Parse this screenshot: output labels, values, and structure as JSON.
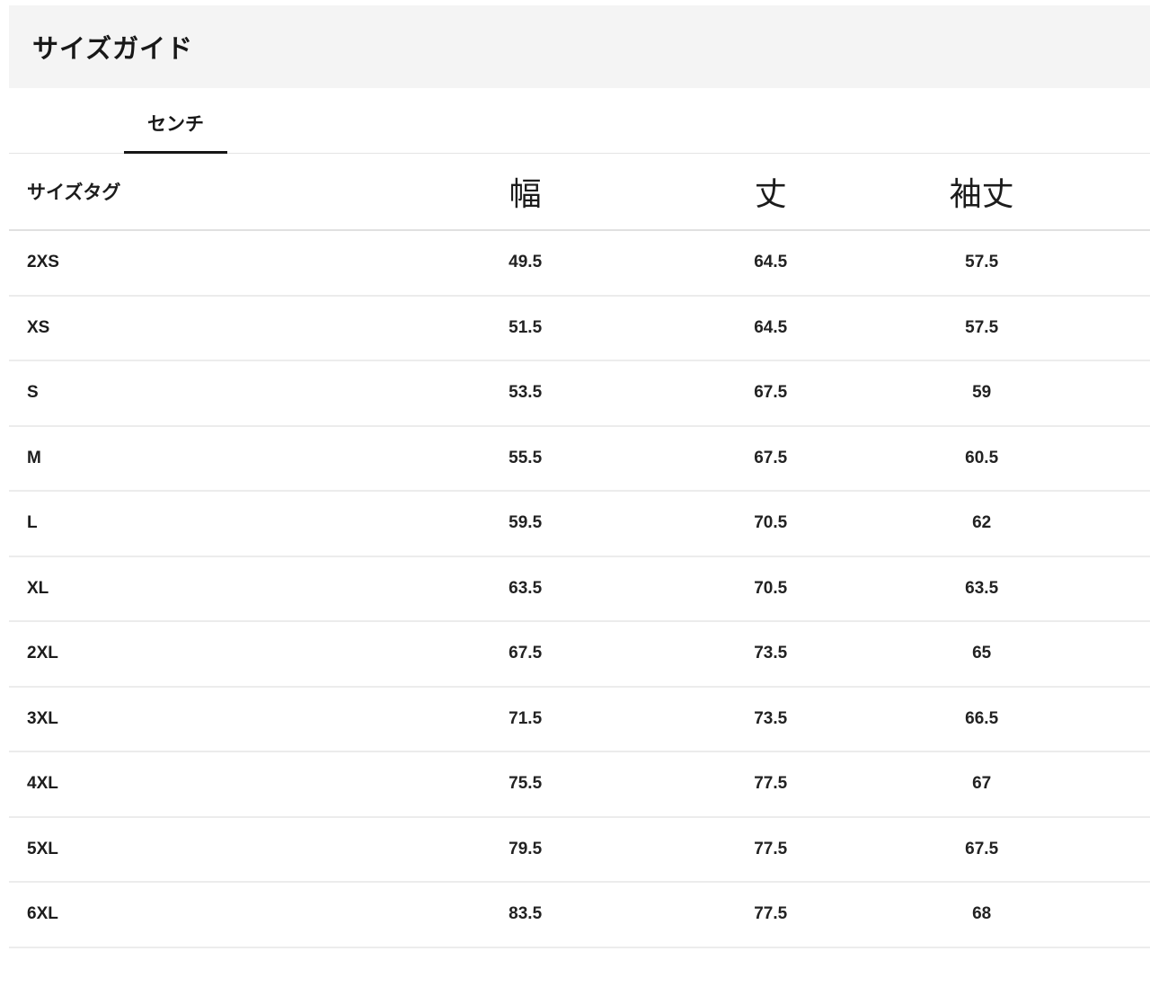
{
  "header": {
    "title": "サイズガイド"
  },
  "tabs": {
    "unit_tab_label": "センチ"
  },
  "table": {
    "columns": [
      "サイズタグ",
      "幅",
      "丈",
      "袖丈"
    ],
    "rows": [
      [
        "2XS",
        "49.5",
        "64.5",
        "57.5"
      ],
      [
        "XS",
        "51.5",
        "64.5",
        "57.5"
      ],
      [
        "S",
        "53.5",
        "67.5",
        "59"
      ],
      [
        "M",
        "55.5",
        "67.5",
        "60.5"
      ],
      [
        "L",
        "59.5",
        "70.5",
        "62"
      ],
      [
        "XL",
        "63.5",
        "70.5",
        "63.5"
      ],
      [
        "2XL",
        "67.5",
        "73.5",
        "65"
      ],
      [
        "3XL",
        "71.5",
        "73.5",
        "66.5"
      ],
      [
        "4XL",
        "75.5",
        "77.5",
        "67"
      ],
      [
        "5XL",
        "79.5",
        "77.5",
        "67.5"
      ],
      [
        "6XL",
        "83.5",
        "77.5",
        "68"
      ]
    ]
  },
  "colors": {
    "band_background": "#f4f4f4",
    "tab_underline": "#161616",
    "row_divider": "#ececec",
    "text": "#1c1c1c"
  }
}
